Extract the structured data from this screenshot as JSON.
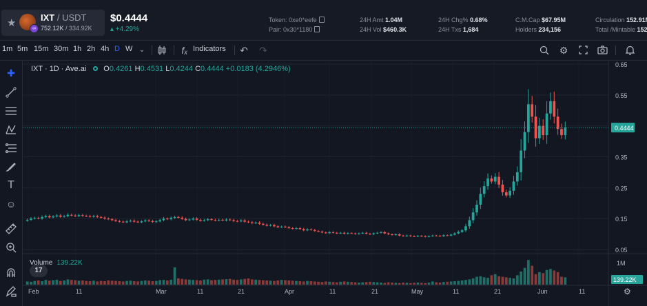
{
  "header": {
    "symbol": "IXT",
    "quote": " / USDT",
    "market_cap_short": "752.12K",
    "sep": " / ",
    "volume_short": "334.92K",
    "price": "$0.4444",
    "change": "▴ +4.29%",
    "stats": {
      "token_label": "Token:",
      "token_value": "0xe0*eefe",
      "pair_label": "Pair:",
      "pair_value": "0x30*1180",
      "amt_label": "24H Amt",
      "amt_value": "1.04M",
      "vol_label": "24H Vol",
      "vol_value": "$460.3K",
      "chg_label": "24H Chg%",
      "chg_value": "0.68%",
      "txs_label": "24H Txs",
      "txs_value": "1,684",
      "cmcap_label": "C.M.Cap",
      "cmcap_value": "$67.95M",
      "holders_label": "Holders",
      "holders_value": "234,156",
      "circ_label": "Circulation",
      "circ_value": "152.91M",
      "total_label": "Total /Mintable",
      "total_value": "152"
    }
  },
  "toolbar": {
    "timeframes": [
      "1m",
      "5m",
      "15m",
      "30m",
      "1h",
      "2h",
      "4h",
      "D",
      "W"
    ],
    "active_timeframe": "D",
    "indicators_label": "Indicators",
    "fx_symbol": "fₓ"
  },
  "legend": {
    "title": "IXT · 1D · Ave.ai",
    "o_label": "O",
    "o": "0.4261",
    "h_label": "H",
    "h": "0.4531",
    "l_label": "L",
    "l": "0.4244",
    "c_label": "C",
    "c": "0.4444",
    "delta": "+0.0183 (4.2946%)"
  },
  "volume_legend": {
    "label": "Volume",
    "value": "139.22K"
  },
  "tv_badge": "17",
  "chart_data": {
    "type": "candlestick",
    "y_ticks": [
      "0.65",
      "0.55",
      "0.45",
      "0.35",
      "0.25",
      "0.15",
      "0.05"
    ],
    "y_range": [
      0.05,
      0.65
    ],
    "current_price_label": "0.4444",
    "volume_axis_label": "1M",
    "volume_current_label": "139.22K",
    "x_ticks": [
      "Feb",
      "11",
      "Mar",
      "11",
      "21",
      "Apr",
      "11",
      "21",
      "May",
      "11",
      "21",
      "Jun",
      "11"
    ],
    "up_color": "#26a69a",
    "down_color": "#ef5350",
    "close": [
      0.146,
      0.15,
      0.152,
      0.15,
      0.155,
      0.158,
      0.154,
      0.157,
      0.16,
      0.156,
      0.158,
      0.162,
      0.16,
      0.158,
      0.161,
      0.159,
      0.158,
      0.156,
      0.158,
      0.155,
      0.153,
      0.15,
      0.148,
      0.145,
      0.142,
      0.14,
      0.138,
      0.141,
      0.143,
      0.14,
      0.138,
      0.141,
      0.144,
      0.142,
      0.139,
      0.141,
      0.145,
      0.15,
      0.148,
      0.152,
      0.155,
      0.153,
      0.149,
      0.145,
      0.147,
      0.15,
      0.146,
      0.143,
      0.145,
      0.148,
      0.146,
      0.144,
      0.146,
      0.144,
      0.147,
      0.145,
      0.142,
      0.141,
      0.144,
      0.14,
      0.138,
      0.135,
      0.137,
      0.133,
      0.13,
      0.127,
      0.129,
      0.125,
      0.122,
      0.124,
      0.122,
      0.119,
      0.117,
      0.119,
      0.116,
      0.112,
      0.115,
      0.113,
      0.11,
      0.108,
      0.105,
      0.103,
      0.106,
      0.104,
      0.102,
      0.104,
      0.101,
      0.103,
      0.102,
      0.1,
      0.102,
      0.104,
      0.101,
      0.099,
      0.102,
      0.104,
      0.106,
      0.102,
      0.099,
      0.097,
      0.099,
      0.095,
      0.093,
      0.095,
      0.093,
      0.092,
      0.094,
      0.093,
      0.091,
      0.093,
      0.095,
      0.094,
      0.093,
      0.096,
      0.095,
      0.098,
      0.102,
      0.107,
      0.112,
      0.125,
      0.145,
      0.17,
      0.195,
      0.23,
      0.255,
      0.28,
      0.27,
      0.285,
      0.26,
      0.235,
      0.225,
      0.24,
      0.27,
      0.3,
      0.37,
      0.43,
      0.52,
      0.48,
      0.41,
      0.45,
      0.42,
      0.49,
      0.53,
      0.48,
      0.44,
      0.42,
      0.444
    ],
    "volume": [
      60,
      55,
      70,
      80,
      65,
      90,
      75,
      85,
      95,
      70,
      80,
      100,
      90,
      85,
      75,
      80,
      70,
      65,
      75,
      60,
      70,
      65,
      80,
      75,
      70,
      65,
      60,
      70,
      75,
      65,
      60,
      70,
      80,
      75,
      65,
      70,
      85,
      90,
      80,
      95,
      330,
      120,
      110,
      100,
      95,
      90,
      85,
      80,
      95,
      100,
      85,
      90,
      95,
      100,
      105,
      110,
      95,
      90,
      100,
      110,
      120,
      100,
      95,
      90,
      85,
      80,
      75,
      70,
      80,
      90,
      85,
      80,
      75,
      70,
      65,
      60,
      70,
      65,
      60,
      55,
      50,
      60,
      55,
      50,
      45,
      55,
      60,
      55,
      50,
      45,
      40,
      45,
      50,
      55,
      50,
      45,
      40,
      35,
      45,
      40,
      35,
      30,
      40,
      35,
      30,
      35,
      40,
      35,
      30,
      40,
      60,
      45,
      40,
      50,
      55,
      60,
      65,
      70,
      80,
      90,
      100,
      120,
      150,
      160,
      140,
      130,
      180,
      200,
      160,
      150,
      140,
      130,
      120,
      180,
      250,
      320,
      470,
      360,
      200,
      240,
      220,
      280,
      300,
      270,
      240,
      150,
      140
    ]
  }
}
